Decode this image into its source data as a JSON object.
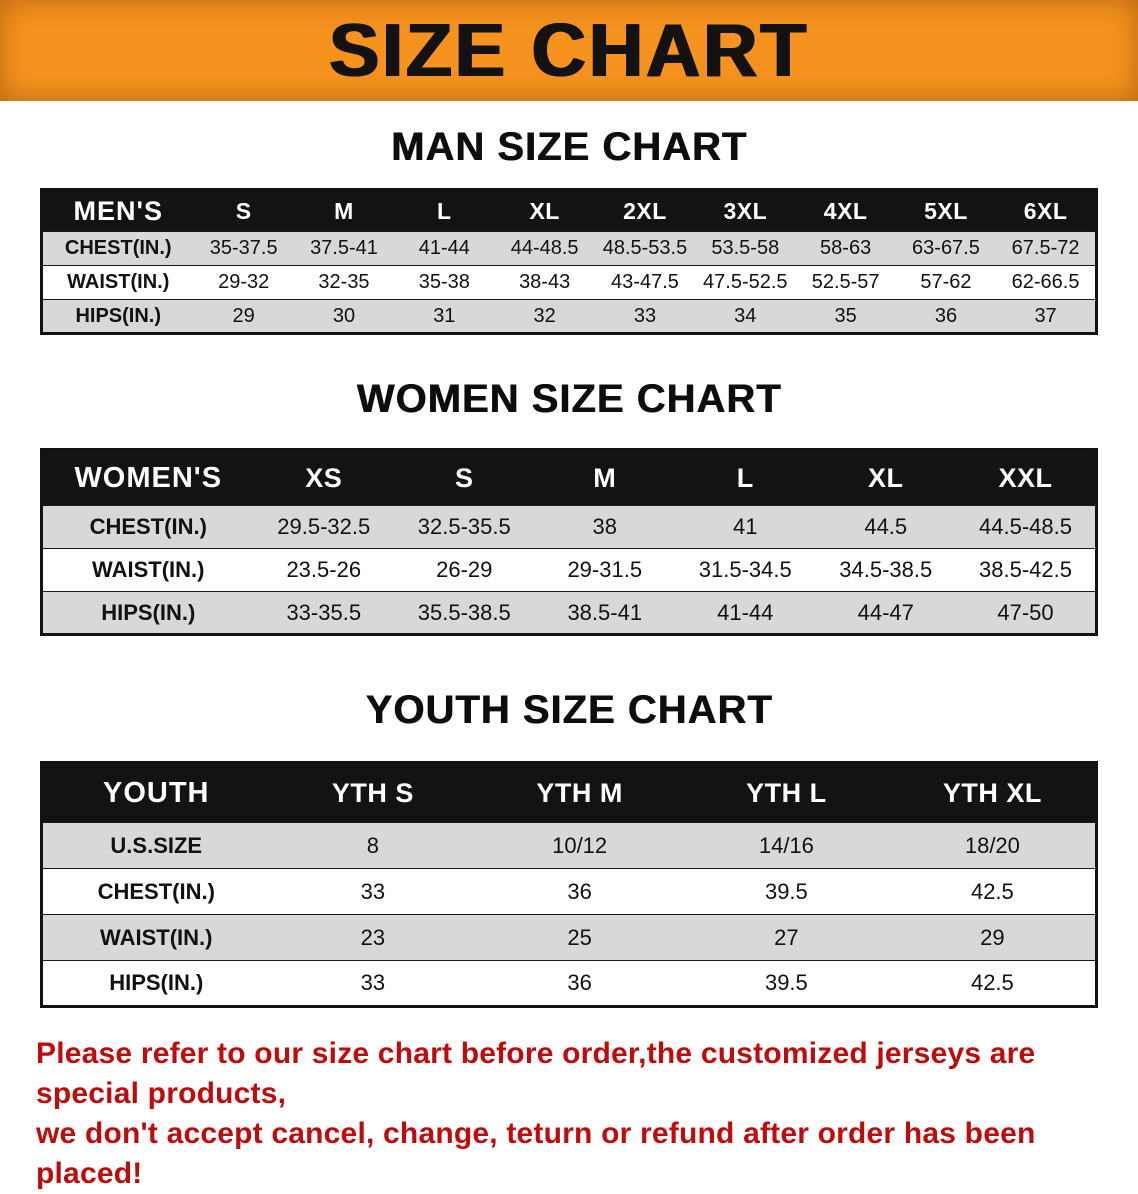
{
  "banner": {
    "title": "SIZE CHART",
    "bg_color": "#f6921e",
    "text_color": "#131210"
  },
  "sections": [
    {
      "heading": "MAN SIZE CHART",
      "table": {
        "header": [
          "MEN'S",
          "S",
          "M",
          "L",
          "XL",
          "2XL",
          "3XL",
          "4XL",
          "5XL",
          "6XL"
        ],
        "rows": [
          [
            "CHEST(IN.)",
            "35-37.5",
            "37.5-41",
            "41-44",
            "44-48.5",
            "48.5-53.5",
            "53.5-58",
            "58-63",
            "63-67.5",
            "67.5-72"
          ],
          [
            "WAIST(IN.)",
            "29-32",
            "32-35",
            "35-38",
            "38-43",
            "43-47.5",
            "47.5-52.5",
            "52.5-57",
            "57-62",
            "62-66.5"
          ],
          [
            "HIPS(IN.)",
            "29",
            "30",
            "31",
            "32",
            "33",
            "34",
            "35",
            "36",
            "37"
          ]
        ]
      }
    },
    {
      "heading": "WOMEN SIZE CHART",
      "table": {
        "header": [
          "WOMEN'S",
          "XS",
          "S",
          "M",
          "L",
          "XL",
          "XXL"
        ],
        "rows": [
          [
            "CHEST(IN.)",
            "29.5-32.5",
            "32.5-35.5",
            "38",
            "41",
            "44.5",
            "44.5-48.5"
          ],
          [
            "WAIST(IN.)",
            "23.5-26",
            "26-29",
            "29-31.5",
            "31.5-34.5",
            "34.5-38.5",
            "38.5-42.5"
          ],
          [
            "HIPS(IN.)",
            "33-35.5",
            "35.5-38.5",
            "38.5-41",
            "41-44",
            "44-47",
            "47-50"
          ]
        ]
      }
    },
    {
      "heading": "YOUTH SIZE CHART",
      "table": {
        "header": [
          "YOUTH",
          "YTH S",
          "YTH M",
          "YTH L",
          "YTH XL"
        ],
        "rows": [
          [
            "U.S.SIZE",
            "8",
            "10/12",
            "14/16",
            "18/20"
          ],
          [
            "CHEST(IN.)",
            "33",
            "36",
            "39.5",
            "42.5"
          ],
          [
            "WAIST(IN.)",
            "23",
            "25",
            "27",
            "29"
          ],
          [
            "HIPS(IN.)",
            "33",
            "36",
            "39.5",
            "42.5"
          ]
        ]
      }
    }
  ],
  "footer": {
    "line1": "Please refer to our size chart before order,the customized jerseys are special products,",
    "line2": "we don't accept cancel, change, teturn or refund after order has been placed!",
    "text_color": "#bf0b0b"
  }
}
